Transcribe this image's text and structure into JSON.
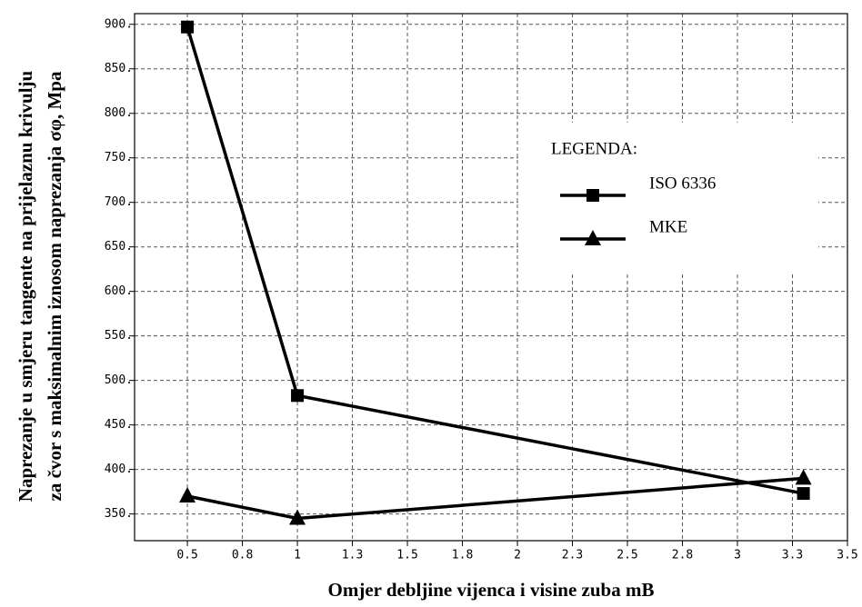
{
  "chart_data": {
    "type": "line",
    "ylabel": [
      "Naprezanje u smjeru tangente na prijelaznu krivulju",
      "za čvor s maksimalnim iznosom naprezanja σφ, Mpa"
    ],
    "xlabel": "Omjer debljine vijenca i visine zuba mB",
    "legend_title": "LEGENDA:",
    "legend": "upper right",
    "grid": true,
    "xlim": [
      0.26,
      3.5
    ],
    "xticks": [
      0.5,
      {
        "value": 0.75,
        "label": "0.8"
      },
      1.0,
      {
        "value": 1.25,
        "label": "1.3"
      },
      1.5,
      {
        "value": 1.75,
        "label": "1.8"
      },
      2.0,
      {
        "value": 2.25,
        "label": "2.3"
      },
      2.5,
      {
        "value": 2.75,
        "label": "2.8"
      },
      3.0,
      {
        "value": 3.25,
        "label": "3.3"
      },
      3.5
    ],
    "ylim": [
      320,
      912
    ],
    "yticks": [
      {
        "value": 350,
        "label": "350."
      },
      {
        "value": 400,
        "label": "400."
      },
      {
        "value": 450,
        "label": "450."
      },
      {
        "value": 500,
        "label": "500."
      },
      {
        "value": 550,
        "label": "550."
      },
      {
        "value": 600,
        "label": "600."
      },
      {
        "value": 650,
        "label": "650."
      },
      {
        "value": 700,
        "label": "700."
      },
      {
        "value": 750,
        "label": "750."
      },
      {
        "value": 800,
        "label": "800."
      },
      {
        "value": 850,
        "label": "850."
      },
      {
        "value": 900,
        "label": "900."
      }
    ],
    "x": [
      0.5,
      1.0,
      3.3
    ],
    "series": [
      {
        "name": "ISO 6336",
        "color": "#000000",
        "marker": "square",
        "values": [
          897,
          483,
          373
        ]
      },
      {
        "name": "MKE",
        "color": "#000000",
        "marker": "triangle",
        "values": [
          370,
          345,
          390
        ]
      }
    ]
  }
}
